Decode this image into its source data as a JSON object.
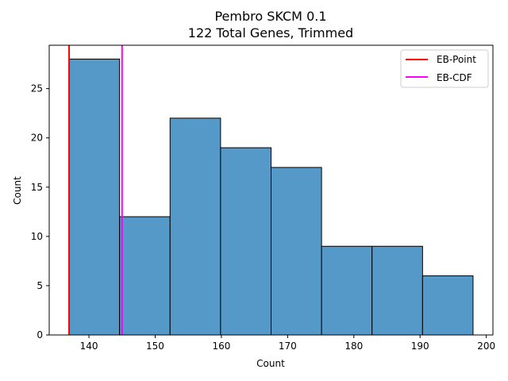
{
  "chart_data": {
    "type": "bar",
    "title": "Pembro SKCM 0.1",
    "subtitle": "122 Total Genes, Trimmed",
    "xlabel": "Count",
    "ylabel": "Count",
    "bin_edges": [
      137.0,
      144.625,
      152.25,
      159.875,
      167.5,
      175.125,
      182.75,
      190.375,
      198.0
    ],
    "values": [
      28,
      12,
      22,
      19,
      17,
      9,
      9,
      6
    ],
    "xlim": [
      134.0,
      201.0
    ],
    "ylim": [
      0,
      29.4
    ],
    "x_ticks": [
      140,
      150,
      160,
      170,
      180,
      190,
      200
    ],
    "y_ticks": [
      0,
      5,
      10,
      15,
      20,
      25
    ],
    "bar_color": "#5499c7",
    "grid": false,
    "legend_position": "top-right",
    "vlines": [
      {
        "name": "EB-Point",
        "x": 137.0,
        "color": "#ff0000"
      },
      {
        "name": "EB-CDF",
        "x": 145.0,
        "color": "#ff00ff"
      }
    ]
  }
}
